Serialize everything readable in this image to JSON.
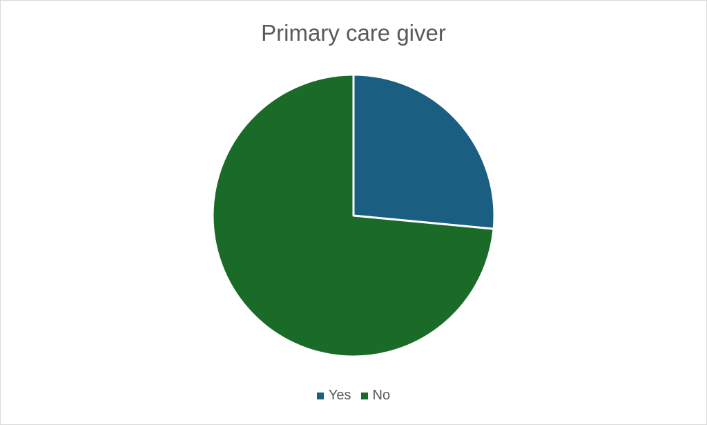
{
  "chart_data": {
    "type": "pie",
    "title": "Primary care giver",
    "categories": [
      "Yes",
      "No"
    ],
    "values": [
      26.5,
      73.5
    ],
    "colors": [
      "#1a5e82",
      "#1b6b28"
    ],
    "start_angle_deg": 0,
    "direction": "clockwise",
    "slice_border_color": "#ffffff",
    "legend_position": "bottom"
  }
}
